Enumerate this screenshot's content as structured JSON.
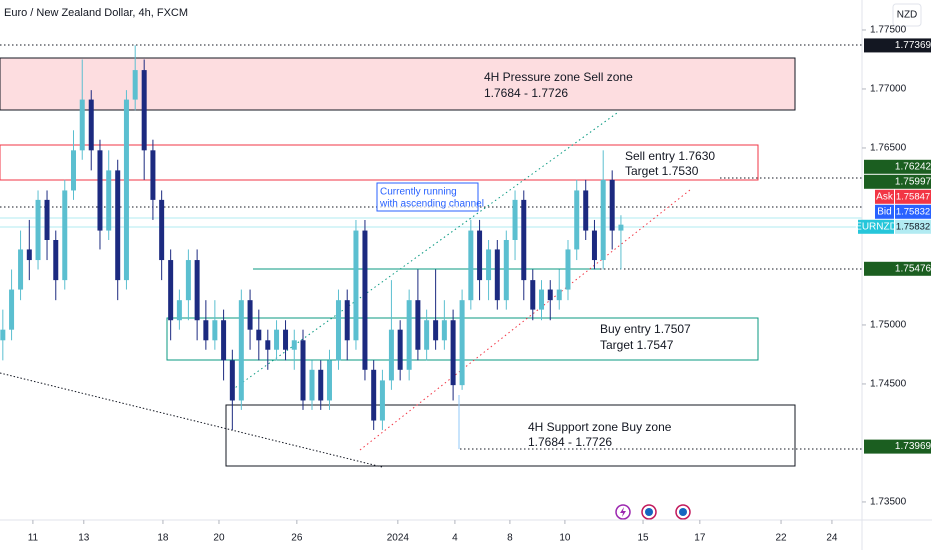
{
  "chart_data": {
    "type": "candlestick",
    "title": "Euro / New Zealand Dollar, 4h, FXCM",
    "currency": "NZD",
    "annotations": [
      {
        "lines": [
          "4H Pressure zone Sell zone",
          "1.7684 - 1.7726"
        ]
      },
      {
        "lines": [
          "Sell entry 1.7630",
          "Target 1.7530"
        ]
      },
      {
        "lines": [
          "Currently running",
          "with ascending channel"
        ]
      },
      {
        "lines": [
          "Buy entry 1.7507",
          "Target 1.7547"
        ]
      },
      {
        "lines": [
          "4H Support zone Buy zone",
          "1.7684 - 1.7726"
        ]
      }
    ],
    "up_color": "#5bbfd0",
    "down_color": "#1c2a80",
    "xlim": [
      -1.28,
      32.26
    ],
    "xticks": [
      {
        "value": 0,
        "label": "11"
      },
      {
        "value": 1.98,
        "label": "13"
      },
      {
        "value": 5.06,
        "label": "18"
      },
      {
        "value": 7.24,
        "label": "20"
      },
      {
        "value": 10.27,
        "label": "26"
      },
      {
        "value": 14.2,
        "label": "2024"
      },
      {
        "value": 16.42,
        "label": "4"
      },
      {
        "value": 18.56,
        "label": "8"
      },
      {
        "value": 20.7,
        "label": "10"
      },
      {
        "value": 23.74,
        "label": "15"
      },
      {
        "value": 25.95,
        "label": "17"
      },
      {
        "value": 29.11,
        "label": "22"
      },
      {
        "value": 31.09,
        "label": "24"
      }
    ],
    "ylim": [
      1.73347,
      1.77754
    ],
    "yticks": [
      {
        "value": 1.775,
        "label": "1.77500"
      },
      {
        "value": 1.77,
        "label": "1.77000"
      },
      {
        "value": 1.765,
        "label": "1.76500"
      },
      {
        "value": 1.75,
        "label": "1.75000"
      },
      {
        "value": 1.745,
        "label": "1.74500"
      },
      {
        "value": 1.735,
        "label": "1.73500"
      }
    ],
    "price_labels": [
      {
        "value": 1.77369,
        "color": "#131722"
      },
      {
        "value": 1.76242,
        "color": "#1b5e20"
      },
      {
        "value": 1.75997,
        "color": "#1b5e20"
      },
      {
        "tag": "Ask",
        "value": 1.75847,
        "color": "#f23645"
      },
      {
        "tag": "Bid",
        "value": 1.75832,
        "color": "#2962ff"
      },
      {
        "tag": "EURNZD",
        "value": 1.75832,
        "color": "#b2ebf2"
      },
      {
        "value": 1.75476,
        "color": "#1b5e20"
      },
      {
        "value": 1.73969,
        "color": "#1b5e20"
      }
    ],
    "x": [
      -1.17,
      -0.83,
      -0.48,
      -0.14,
      0.2,
      0.55,
      0.89,
      1.24,
      1.58,
      1.92,
      2.27,
      2.61,
      2.95,
      3.3,
      3.64,
      3.98,
      4.33,
      4.67,
      5.01,
      5.36,
      5.7,
      6.05,
      6.39,
      6.73,
      7.08,
      7.42,
      7.76,
      8.11,
      8.45,
      8.79,
      9.14,
      9.48,
      9.83,
      10.17,
      10.51,
      10.86,
      11.2,
      11.54,
      11.89,
      12.23,
      12.57,
      12.92,
      13.26,
      13.6,
      13.95,
      14.29,
      14.64,
      14.98,
      15.32,
      15.67,
      16.01,
      16.35,
      16.7,
      17.04,
      17.38,
      17.73,
      18.07,
      18.42,
      18.76,
      19.1,
      19.45,
      19.79,
      20.13,
      20.48,
      20.82,
      21.16,
      21.51,
      21.85,
      22.19,
      22.54,
      22.88
    ],
    "open": [
      1.7487,
      1.7496,
      1.753,
      1.7564,
      1.7555,
      1.7606,
      1.7572,
      1.7538,
      1.7614,
      1.7648,
      1.7691,
      1.7648,
      1.758,
      1.7631,
      1.7538,
      1.7691,
      1.7716,
      1.7648,
      1.7606,
      1.7555,
      1.7504,
      1.7521,
      1.7555,
      1.7504,
      1.7487,
      1.7504,
      1.747,
      1.7436,
      1.7521,
      1.7496,
      1.7487,
      1.7479,
      1.7496,
      1.7479,
      1.7487,
      1.7436,
      1.7462,
      1.7436,
      1.747,
      1.7521,
      1.7487,
      1.758,
      1.7462,
      1.7419,
      1.7453,
      1.7496,
      1.7462,
      1.7521,
      1.7479,
      1.7504,
      1.7487,
      1.7504,
      1.7449,
      1.7521,
      1.758,
      1.7538,
      1.7564,
      1.7521,
      1.7572,
      1.7606,
      1.7538,
      1.7513,
      1.753,
      1.7521,
      1.753,
      1.7564,
      1.7614,
      1.758,
      1.7555,
      1.7623,
      1.758
    ],
    "high": [
      1.7513,
      1.7547,
      1.758,
      1.7589,
      1.7614,
      1.7614,
      1.758,
      1.7623,
      1.7665,
      1.7725,
      1.7699,
      1.7657,
      1.7648,
      1.764,
      1.7699,
      1.7737,
      1.7725,
      1.7657,
      1.7614,
      1.7564,
      1.753,
      1.7564,
      1.7564,
      1.7521,
      1.7521,
      1.7513,
      1.7479,
      1.753,
      1.753,
      1.7513,
      1.7496,
      1.7504,
      1.7504,
      1.7496,
      1.7496,
      1.747,
      1.747,
      1.7479,
      1.753,
      1.753,
      1.7589,
      1.7589,
      1.747,
      1.7462,
      1.7538,
      1.7504,
      1.753,
      1.7547,
      1.7513,
      1.7547,
      1.7521,
      1.7513,
      1.753,
      1.7589,
      1.7589,
      1.7572,
      1.7572,
      1.758,
      1.7614,
      1.7614,
      1.7547,
      1.7538,
      1.7538,
      1.7547,
      1.7572,
      1.7623,
      1.7623,
      1.7589,
      1.7648,
      1.7631,
      1.7593
    ],
    "low": [
      1.747,
      1.7487,
      1.7521,
      1.7538,
      1.7547,
      1.7555,
      1.7521,
      1.753,
      1.7606,
      1.764,
      1.7631,
      1.7564,
      1.7572,
      1.7521,
      1.753,
      1.7682,
      1.7623,
      1.7589,
      1.7538,
      1.7487,
      1.7496,
      1.7504,
      1.7487,
      1.7479,
      1.7479,
      1.7453,
      1.7411,
      1.7428,
      1.7479,
      1.747,
      1.7462,
      1.747,
      1.747,
      1.7462,
      1.7428,
      1.7428,
      1.7428,
      1.7428,
      1.7462,
      1.747,
      1.7479,
      1.7453,
      1.7411,
      1.7411,
      1.7445,
      1.7453,
      1.7453,
      1.747,
      1.747,
      1.7479,
      1.7479,
      1.7436,
      1.7445,
      1.7513,
      1.7521,
      1.7521,
      1.7513,
      1.7513,
      1.7555,
      1.7521,
      1.7504,
      1.7504,
      1.7504,
      1.7513,
      1.7521,
      1.7555,
      1.7572,
      1.7547,
      1.7547,
      1.7564,
      1.7547
    ],
    "close": [
      1.7496,
      1.753,
      1.7564,
      1.7555,
      1.7606,
      1.7572,
      1.7538,
      1.7614,
      1.7648,
      1.7691,
      1.7648,
      1.758,
      1.7631,
      1.7538,
      1.7691,
      1.7716,
      1.7648,
      1.7606,
      1.7555,
      1.7504,
      1.7521,
      1.7555,
      1.7504,
      1.7487,
      1.7504,
      1.747,
      1.7436,
      1.7521,
      1.7496,
      1.7487,
      1.7479,
      1.7496,
      1.7479,
      1.7487,
      1.7436,
      1.7462,
      1.7436,
      1.747,
      1.7521,
      1.7487,
      1.758,
      1.7462,
      1.7419,
      1.7453,
      1.7496,
      1.7462,
      1.7521,
      1.7479,
      1.7504,
      1.7487,
      1.7504,
      1.7449,
      1.7521,
      1.758,
      1.7538,
      1.7564,
      1.7521,
      1.7572,
      1.7606,
      1.7538,
      1.7513,
      1.753,
      1.7521,
      1.753,
      1.7564,
      1.7614,
      1.758,
      1.7555,
      1.7623,
      1.758,
      1.7585
    ]
  }
}
